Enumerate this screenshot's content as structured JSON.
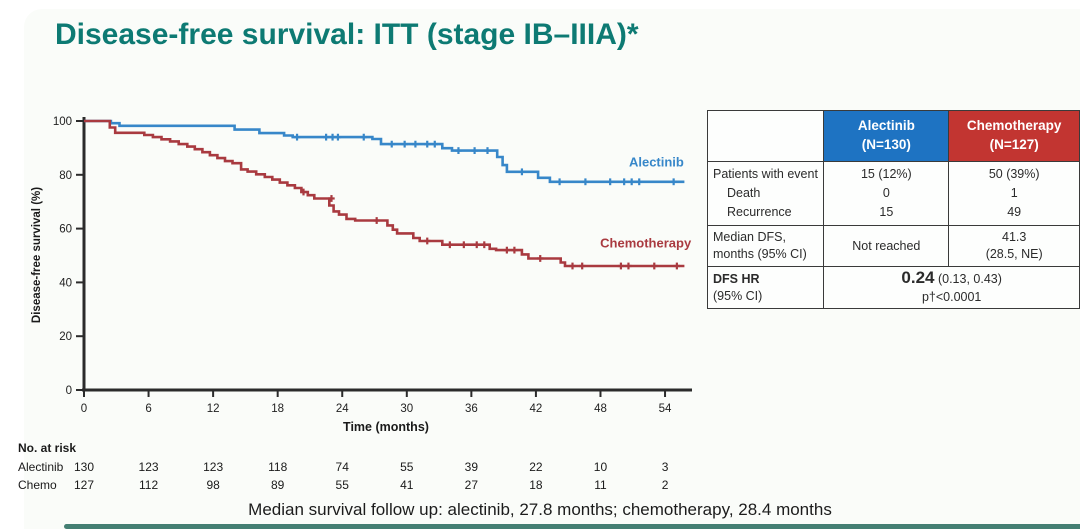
{
  "slide": {
    "title": "Disease-free survival: ITT (stage IB–IIIA)*",
    "title_color": "#0d7a73",
    "caption": "Median survival follow up: alectinib, 27.8 months; chemotherapy, 28.4 months",
    "accent_bar_color": "#447f73"
  },
  "chart_data": {
    "type": "line",
    "subtype": "kaplan-meier-step",
    "title": "",
    "xlabel": "Time (months)",
    "ylabel": "Disease-free survival (%)",
    "xlim": [
      0,
      57
    ],
    "ylim": [
      0,
      100
    ],
    "xticks": [
      0,
      6,
      12,
      18,
      24,
      30,
      36,
      42,
      48,
      54
    ],
    "yticks": [
      100,
      80,
      60,
      40,
      20,
      0
    ],
    "grid": false,
    "legend_position": "end-of-line-labels",
    "axis_color": "#2b2b2b",
    "series": [
      {
        "name": "Alectinib",
        "color": "#3787c9",
        "label_pos": {
          "month": 53.2,
          "pct": 83
        },
        "steps": [
          [
            0,
            100
          ],
          [
            2.5,
            100
          ],
          [
            2.5,
            99.2
          ],
          [
            3.3,
            99.2
          ],
          [
            3.3,
            98.2
          ],
          [
            14.0,
            98.2
          ],
          [
            14.0,
            96.8
          ],
          [
            16.3,
            96.8
          ],
          [
            16.3,
            95.5
          ],
          [
            18.6,
            95.5
          ],
          [
            18.6,
            94.6
          ],
          [
            19.4,
            94.6
          ],
          [
            19.4,
            94.0
          ],
          [
            26.8,
            94.0
          ],
          [
            26.8,
            93.3
          ],
          [
            27.6,
            93.3
          ],
          [
            27.6,
            91.4
          ],
          [
            33.3,
            91.4
          ],
          [
            33.3,
            89.9
          ],
          [
            34.2,
            89.9
          ],
          [
            34.2,
            89.0
          ],
          [
            38.4,
            89.0
          ],
          [
            38.4,
            86.6
          ],
          [
            38.9,
            86.6
          ],
          [
            38.9,
            83.6
          ],
          [
            39.3,
            83.6
          ],
          [
            39.3,
            81.1
          ],
          [
            42.2,
            81.1
          ],
          [
            42.2,
            78.9
          ],
          [
            43.3,
            78.9
          ],
          [
            43.3,
            77.4
          ],
          [
            55.8,
            77.4
          ]
        ],
        "censors": [
          [
            19.8,
            94.0
          ],
          [
            22.5,
            94.0
          ],
          [
            23.1,
            94.0
          ],
          [
            23.6,
            94.0
          ],
          [
            26.0,
            94.0
          ],
          [
            28.6,
            91.4
          ],
          [
            29.8,
            91.4
          ],
          [
            30.8,
            91.4
          ],
          [
            31.9,
            91.4
          ],
          [
            32.6,
            91.4
          ],
          [
            34.8,
            89.0
          ],
          [
            36.3,
            89.0
          ],
          [
            37.5,
            89.0
          ],
          [
            40.7,
            81.1
          ],
          [
            44.2,
            77.4
          ],
          [
            46.6,
            77.4
          ],
          [
            48.9,
            77.4
          ],
          [
            50.2,
            77.4
          ],
          [
            50.9,
            77.4
          ],
          [
            51.6,
            77.4
          ],
          [
            54.8,
            77.4
          ]
        ]
      },
      {
        "name": "Chemotherapy",
        "color": "#a93a40",
        "label_pos": {
          "month": 52.2,
          "pct": 53
        },
        "steps": [
          [
            0,
            100
          ],
          [
            2.4,
            100
          ],
          [
            2.4,
            97.6
          ],
          [
            2.9,
            97.6
          ],
          [
            2.9,
            95.6
          ],
          [
            5.6,
            95.6
          ],
          [
            5.6,
            94.8
          ],
          [
            6.4,
            94.8
          ],
          [
            6.4,
            94.0
          ],
          [
            7.2,
            94.0
          ],
          [
            7.2,
            93.2
          ],
          [
            8.0,
            93.2
          ],
          [
            8.0,
            92.4
          ],
          [
            8.8,
            92.4
          ],
          [
            8.8,
            91.4
          ],
          [
            9.6,
            91.4
          ],
          [
            9.6,
            90.5
          ],
          [
            10.3,
            90.5
          ],
          [
            10.3,
            89.5
          ],
          [
            11.0,
            89.5
          ],
          [
            11.0,
            88.4
          ],
          [
            11.7,
            88.4
          ],
          [
            11.7,
            87.3
          ],
          [
            12.4,
            87.3
          ],
          [
            12.4,
            86.2
          ],
          [
            13.1,
            86.2
          ],
          [
            13.1,
            85.1
          ],
          [
            13.8,
            85.1
          ],
          [
            13.8,
            84.3
          ],
          [
            14.6,
            84.3
          ],
          [
            14.6,
            82.0
          ],
          [
            15.2,
            82.0
          ],
          [
            15.2,
            81.2
          ],
          [
            16.0,
            81.2
          ],
          [
            16.0,
            80.2
          ],
          [
            16.8,
            80.2
          ],
          [
            16.8,
            79.2
          ],
          [
            17.5,
            79.2
          ],
          [
            17.5,
            78.2
          ],
          [
            18.2,
            78.2
          ],
          [
            18.2,
            77.1
          ],
          [
            18.9,
            77.1
          ],
          [
            18.9,
            76.1
          ],
          [
            19.6,
            76.1
          ],
          [
            19.6,
            75.1
          ],
          [
            20.2,
            75.1
          ],
          [
            20.2,
            73.6
          ],
          [
            20.8,
            73.6
          ],
          [
            20.8,
            72.4
          ],
          [
            21.4,
            72.4
          ],
          [
            21.4,
            71.2
          ],
          [
            22.8,
            71.2
          ],
          [
            22.8,
            68.6
          ],
          [
            23.2,
            68.6
          ],
          [
            23.2,
            66.4
          ],
          [
            23.7,
            66.4
          ],
          [
            23.7,
            65.2
          ],
          [
            24.4,
            65.2
          ],
          [
            24.4,
            63.6
          ],
          [
            25.2,
            63.6
          ],
          [
            25.2,
            63.0
          ],
          [
            28.2,
            63.0
          ],
          [
            28.2,
            61.2
          ],
          [
            28.7,
            61.2
          ],
          [
            28.7,
            59.6
          ],
          [
            29.1,
            59.6
          ],
          [
            29.1,
            58.2
          ],
          [
            30.6,
            58.2
          ],
          [
            30.6,
            56.5
          ],
          [
            31.2,
            56.5
          ],
          [
            31.2,
            55.4
          ],
          [
            33.3,
            55.4
          ],
          [
            33.3,
            54.0
          ],
          [
            37.7,
            54.0
          ],
          [
            37.7,
            52.5
          ],
          [
            38.3,
            52.5
          ],
          [
            38.3,
            52.0
          ],
          [
            40.7,
            52.0
          ],
          [
            40.7,
            50.4
          ],
          [
            41.3,
            50.4
          ],
          [
            41.3,
            48.9
          ],
          [
            44.3,
            48.9
          ],
          [
            44.3,
            47.4
          ],
          [
            44.7,
            47.4
          ],
          [
            44.7,
            46.1
          ],
          [
            55.8,
            46.1
          ]
        ],
        "censors": [
          [
            20.4,
            73.6
          ],
          [
            23.0,
            71.2
          ],
          [
            27.2,
            63.0
          ],
          [
            31.9,
            55.4
          ],
          [
            34.0,
            54.0
          ],
          [
            35.3,
            54.0
          ],
          [
            36.5,
            54.0
          ],
          [
            37.2,
            54.0
          ],
          [
            39.3,
            52.0
          ],
          [
            40.0,
            52.0
          ],
          [
            42.4,
            48.9
          ],
          [
            45.4,
            46.1
          ],
          [
            46.3,
            46.1
          ],
          [
            49.9,
            46.1
          ],
          [
            50.6,
            46.1
          ],
          [
            53.0,
            46.1
          ],
          [
            55.1,
            46.1
          ]
        ]
      }
    ],
    "at_risk": {
      "label": "No. at risk",
      "rows": [
        {
          "name": "Alectinib",
          "values": [
            130,
            123,
            123,
            118,
            74,
            55,
            39,
            22,
            10,
            3
          ]
        },
        {
          "name": "Chemo",
          "values": [
            127,
            112,
            98,
            89,
            55,
            41,
            27,
            18,
            11,
            2
          ]
        }
      ]
    }
  },
  "side_table": {
    "col_headers": [
      {
        "name": "Alectinib",
        "n": "(N=130)",
        "bg": "#1e73c2"
      },
      {
        "name": "Chemotherapy",
        "n": "(N=127)",
        "bg": "#c23531"
      }
    ],
    "events": {
      "rows": [
        {
          "label": "Patients with event",
          "a": "15 (12%)",
          "c": "50 (39%)"
        },
        {
          "label": "Death",
          "a": "0",
          "c": "1"
        },
        {
          "label": "Recurrence",
          "a": "15",
          "c": "49"
        }
      ]
    },
    "median": {
      "label_line1": "Median DFS,",
      "label_line2": "months (95% CI)",
      "alectinib": "Not reached",
      "chemo_line1": "41.3",
      "chemo_line2": "(28.5, NE)"
    },
    "hr": {
      "label_line1": "DFS HR",
      "label_line2": "(95% CI)",
      "value_bold": "0.24",
      "value_rest": " (0.13, 0.43)",
      "p_value": "p†<0.0001"
    }
  }
}
